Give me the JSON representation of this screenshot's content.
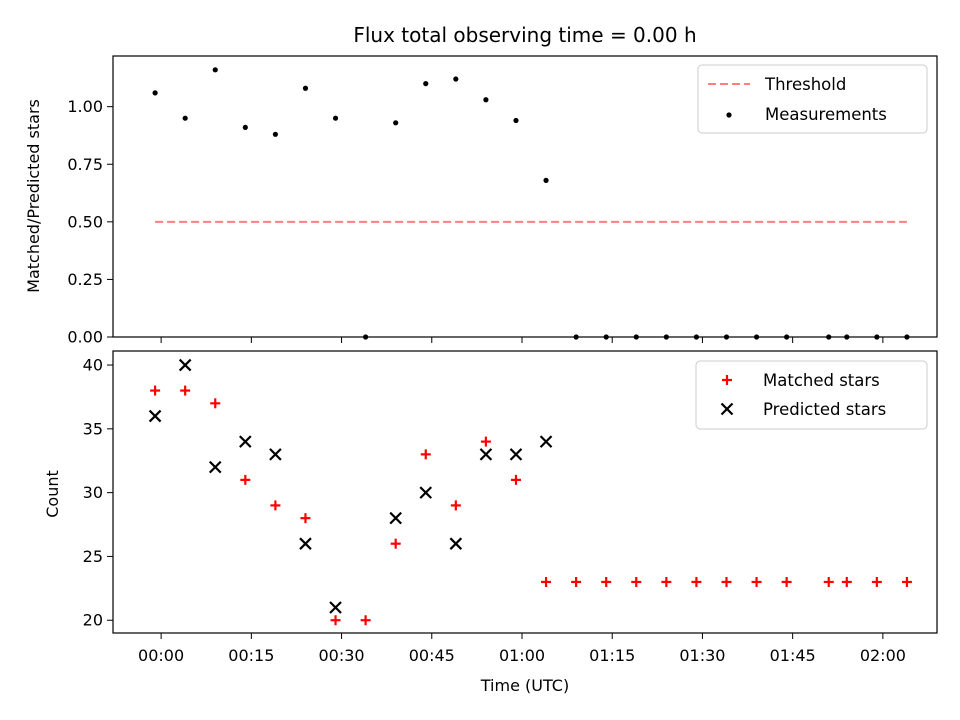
{
  "chart_data": [
    {
      "type": "scatter",
      "title": "Flux total observing time = 0.00 h",
      "xlabel": "",
      "ylabel": "Matched/Predicted stars",
      "ylim": [
        0,
        1.22
      ],
      "yticks": [
        "0.00",
        "0.25",
        "0.50",
        "0.75",
        "1.00"
      ],
      "legend_position": "top-right",
      "threshold": {
        "name": "Threshold",
        "value": 0.5,
        "x_range": [
          "23:59",
          "02:04"
        ],
        "color": "#ff7f7f"
      },
      "series": [
        {
          "name": "Measurements",
          "color": "#000000",
          "x": [
            "23:59",
            "00:04",
            "00:09",
            "00:14",
            "00:19",
            "00:24",
            "00:29",
            "00:34",
            "00:39",
            "00:44",
            "00:49",
            "00:54",
            "00:59",
            "01:04",
            "01:09",
            "01:14",
            "01:19",
            "01:24",
            "01:29",
            "01:34",
            "01:39",
            "01:44",
            "01:51",
            "01:54",
            "01:59",
            "02:04"
          ],
          "y": [
            1.06,
            0.95,
            1.16,
            0.91,
            0.88,
            1.08,
            0.95,
            0.0,
            0.93,
            1.1,
            1.12,
            1.03,
            0.94,
            0.68,
            0.0,
            0.0,
            0.0,
            0.0,
            0.0,
            0.0,
            0.0,
            0.0,
            0.0,
            0.0,
            0.0,
            0.0
          ]
        }
      ]
    },
    {
      "type": "scatter",
      "title": "",
      "xlabel": "Time (UTC)",
      "ylabel": "Count",
      "ylim": [
        19,
        41.1
      ],
      "yticks": [
        "20",
        "25",
        "30",
        "35",
        "40"
      ],
      "xlim": [
        "23:52",
        "02:09"
      ],
      "xticks": [
        "00:00",
        "00:15",
        "00:30",
        "00:45",
        "01:00",
        "01:15",
        "01:30",
        "01:45",
        "02:00"
      ],
      "legend_position": "top-right",
      "series": [
        {
          "name": "Matched stars",
          "marker": "plus",
          "color": "#ff0000",
          "x": [
            "23:59",
            "00:04",
            "00:09",
            "00:14",
            "00:19",
            "00:24",
            "00:29",
            "00:34",
            "00:39",
            "00:44",
            "00:49",
            "00:54",
            "00:59",
            "01:04",
            "01:09",
            "01:14",
            "01:19",
            "01:24",
            "01:29",
            "01:34",
            "01:39",
            "01:44",
            "01:51",
            "01:54",
            "01:59",
            "02:04"
          ],
          "y": [
            38,
            38,
            37,
            31,
            29,
            28,
            20,
            20,
            26,
            33,
            29,
            34,
            31,
            23,
            23,
            23,
            23,
            23,
            23,
            23,
            23,
            23,
            23,
            23,
            23,
            23
          ]
        },
        {
          "name": "Predicted stars",
          "marker": "x",
          "color": "#000000",
          "x": [
            "23:59",
            "00:04",
            "00:09",
            "00:14",
            "00:19",
            "00:24",
            "00:29",
            "00:39",
            "00:44",
            "00:49",
            "00:54",
            "00:59",
            "01:04"
          ],
          "y": [
            36,
            40,
            32,
            34,
            33,
            26,
            21,
            28,
            30,
            26,
            33,
            33,
            34
          ]
        }
      ]
    }
  ]
}
